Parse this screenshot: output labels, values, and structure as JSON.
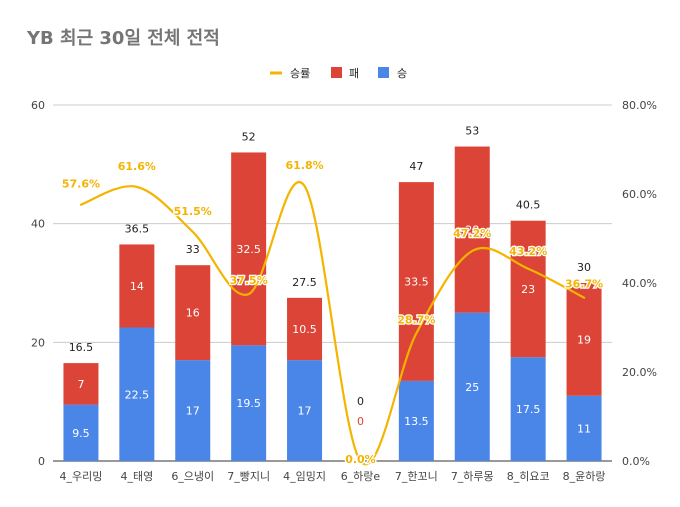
{
  "chart_data": {
    "type": "bar",
    "title": "YB 최근 30일 전체 전적",
    "categories": [
      "4_우리밍",
      "4_태영",
      "6_으냉이",
      "7_빵지니",
      "4_임밍지",
      "6_하랑e",
      "7_한꼬니",
      "7_하루몽",
      "8_히요코",
      "8_윤하랑"
    ],
    "series": [
      {
        "name": "승",
        "kind": "bar",
        "color": "#4a86e8",
        "values": [
          9.5,
          22.5,
          17,
          19.5,
          17,
          0,
          13.5,
          25,
          17.5,
          11
        ]
      },
      {
        "name": "패",
        "kind": "bar",
        "color": "#db4437",
        "values": [
          7,
          14,
          16,
          32.5,
          10.5,
          0,
          33.5,
          28,
          23,
          19
        ]
      },
      {
        "name": "승률",
        "kind": "line",
        "color": "#f4b400",
        "axis": "right",
        "values": [
          57.6,
          61.6,
          51.5,
          37.5,
          61.8,
          0,
          28.7,
          47.2,
          43.2,
          36.7
        ]
      }
    ],
    "totals": [
      16.5,
      36.5,
      33,
      52,
      27.5,
      0,
      47,
      53,
      40.5,
      30
    ],
    "bar_value_labels": {
      "승": [
        "9.5",
        "22.5",
        "17",
        "19.5",
        "17",
        "",
        "13.5",
        "25",
        "17.5",
        "11"
      ],
      "패": [
        "7",
        "14",
        "16",
        "32.5",
        "10.5",
        "0",
        "33.5",
        "28",
        "23",
        "19"
      ]
    },
    "total_labels": [
      "16.5",
      "36.5",
      "33",
      "52",
      "27.5",
      "0",
      "47",
      "53",
      "40.5",
      "30"
    ],
    "rate_labels": [
      "57.6%",
      "61.6%",
      "51.5%",
      "37.5%",
      "61.8%",
      "0.0%",
      "28.7%",
      "47.2%",
      "43.2%",
      "36.7%"
    ],
    "ylim": [
      0,
      60
    ],
    "yticks": [
      0,
      20,
      40,
      60
    ],
    "y2lim": [
      0,
      80
    ],
    "y2ticks": [
      "0.0%",
      "20.0%",
      "40.0%",
      "60.0%",
      "80.0%"
    ],
    "legend": [
      "승률",
      "패",
      "승"
    ],
    "legend_position": "top",
    "grid": true,
    "xlabel": "",
    "ylabel": ""
  }
}
